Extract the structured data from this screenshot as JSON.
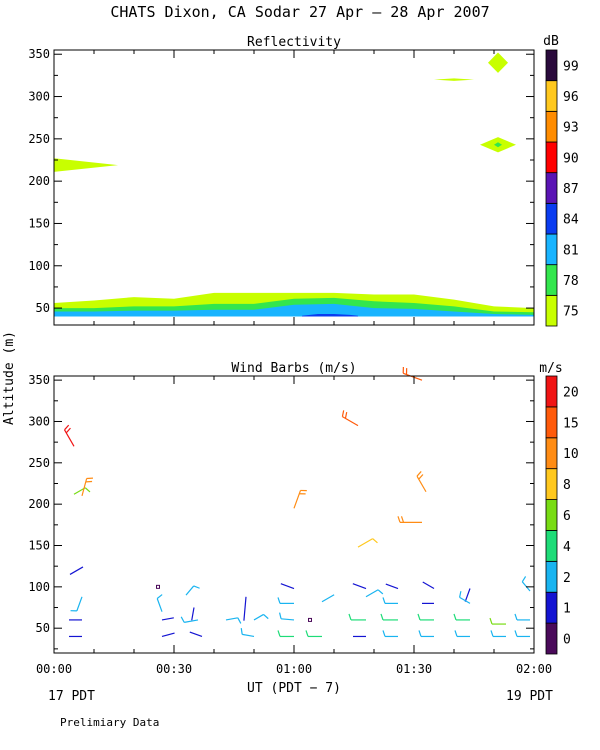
{
  "figure": {
    "title": "CHATS Dixon, CA  Sodar  27 Apr — 28 Apr 2007",
    "ylabel": "Altitude (m)",
    "xlabel": "UT  (PDT − 7)",
    "date_left": "17 PDT",
    "date_right": "19 PDT",
    "footnote": "Prelimiary Data"
  },
  "chart_data": [
    {
      "type": "area",
      "title": "Reflectivity",
      "colorbar_unit": "dB",
      "x_ticks": [
        "00:00",
        "00:30",
        "01:00",
        "01:30",
        "02:00"
      ],
      "y_ticks": [
        50,
        100,
        150,
        200,
        250,
        300,
        350
      ],
      "xlim_minutes": [
        0,
        120
      ],
      "ylim": [
        30,
        355
      ],
      "colorbar": {
        "labels": [
          75,
          78,
          81,
          84,
          87,
          90,
          93,
          96,
          99
        ],
        "colors": [
          "#c8ff00",
          "#33e64d",
          "#19b4ff",
          "#0a3cf0",
          "#5a14b4",
          "#ff0000",
          "#ff8c00",
          "#ffc81e",
          "#2a0a3c"
        ]
      },
      "bands": [
        {
          "level": 75,
          "color": "#c8ff00",
          "x": [
            0,
            10,
            20,
            30,
            40,
            50,
            60,
            70,
            80,
            90,
            100,
            110,
            120
          ],
          "bottom": [
            40,
            40,
            40,
            40,
            40,
            40,
            40,
            40,
            40,
            40,
            40,
            40,
            40
          ],
          "top": [
            56,
            59,
            63,
            61,
            68,
            68,
            68,
            68,
            66,
            66,
            60,
            52,
            50
          ]
        },
        {
          "level": 78,
          "color": "#33e64d",
          "x": [
            0,
            10,
            20,
            30,
            40,
            50,
            60,
            70,
            80,
            90,
            100,
            110,
            120
          ],
          "bottom": [
            40,
            40,
            40,
            40,
            40,
            40,
            40,
            40,
            40,
            40,
            40,
            40,
            40
          ],
          "top": [
            50,
            50,
            52,
            52,
            55,
            55,
            61,
            62,
            58,
            56,
            52,
            46,
            45
          ]
        },
        {
          "level": 81,
          "color": "#19b4ff",
          "x": [
            0,
            10,
            20,
            30,
            40,
            50,
            60,
            70,
            80,
            90,
            100,
            110,
            120
          ],
          "bottom": [
            40,
            40,
            40,
            40,
            40,
            40,
            40,
            40,
            40,
            40,
            40,
            40,
            40
          ],
          "top": [
            46,
            46,
            47,
            47,
            48,
            48,
            54,
            55,
            50,
            49,
            46,
            43,
            42
          ]
        },
        {
          "level": 84,
          "color": "#0a3cf0",
          "x": [
            62,
            66,
            70,
            74,
            76
          ],
          "bottom": [
            40,
            40,
            40,
            40,
            40
          ],
          "top": [
            41,
            43,
            43,
            42,
            41
          ]
        }
      ],
      "blobs": [
        {
          "level": 75,
          "shape": "wedge",
          "cx": 0,
          "cy": 219,
          "dx": 4,
          "dy": 8
        },
        {
          "level": 75,
          "shape": "diamond",
          "cx": 111,
          "cy": 340,
          "dx": 2.5,
          "dy": 12
        },
        {
          "level": 75,
          "shape": "diamond",
          "cx": 100,
          "cy": 320,
          "dx": 5,
          "dy": 1.5
        },
        {
          "level": 75,
          "shape": "diamond",
          "cx": 111,
          "cy": 243,
          "dx": 4.5,
          "dy": 9
        },
        {
          "level": 78,
          "shape": "diamond",
          "cx": 111,
          "cy": 243,
          "dx": 1,
          "dy": 3
        }
      ]
    },
    {
      "type": "scatter",
      "title": "Wind Barbs (m/s)",
      "colorbar_unit": "m/s",
      "x_ticks": [
        "00:00",
        "00:30",
        "01:00",
        "01:30",
        "02:00"
      ],
      "y_ticks": [
        50,
        100,
        150,
        200,
        250,
        300,
        350
      ],
      "xlim_minutes": [
        0,
        120
      ],
      "ylim": [
        20,
        355
      ],
      "colorbar": {
        "labels": [
          "0",
          "1",
          "2",
          "4",
          "6",
          "8",
          "10",
          "15",
          "20"
        ],
        "colors": [
          "#4a0a5a",
          "#1414d2",
          "#19b4f0",
          "#1edc78",
          "#78dc14",
          "#ffc81e",
          "#ff8c14",
          "#ff5a0a",
          "#f01414"
        ]
      },
      "barbs": [
        {
          "t": 4,
          "h": 115,
          "color": "#1414d2",
          "dir": 60,
          "len": 15,
          "ticks": 0
        },
        {
          "t": 5,
          "h": 270,
          "color": "#f01414",
          "dir": 330,
          "len": 19,
          "ticks": 2
        },
        {
          "t": 5,
          "h": 212,
          "color": "#78dc14",
          "dir": 60,
          "len": 13,
          "ticks": 1
        },
        {
          "t": 7,
          "h": 210,
          "color": "#ff8c14",
          "dir": 15,
          "len": 18,
          "ticks": 2
        },
        {
          "t": 7,
          "h": 88,
          "color": "#19b4f0",
          "dir": 200,
          "len": 15,
          "ticks": 1
        },
        {
          "t": 7,
          "h": 60,
          "color": "#1414d2",
          "dir": 270,
          "len": 13,
          "ticks": 0
        },
        {
          "t": 7,
          "h": 40,
          "color": "#1414d2",
          "dir": 270,
          "len": 13,
          "ticks": 0
        },
        {
          "t": 27,
          "h": 70,
          "color": "#19b4f0",
          "dir": 340,
          "len": 14,
          "ticks": 1
        },
        {
          "t": 27,
          "h": 60,
          "color": "#1414d2",
          "dir": 80,
          "len": 12,
          "ticks": 0
        },
        {
          "t": 27,
          "h": 40,
          "color": "#1414d2",
          "dir": 75,
          "len": 13,
          "ticks": 0
        },
        {
          "t": 33,
          "h": 90,
          "color": "#19b4f0",
          "dir": 40,
          "len": 12,
          "ticks": 1
        },
        {
          "t": 35,
          "h": 75,
          "color": "#1414d2",
          "dir": 190,
          "len": 13,
          "ticks": 0
        },
        {
          "t": 36,
          "h": 60,
          "color": "#19b4f0",
          "dir": 260,
          "len": 14,
          "ticks": 1
        },
        {
          "t": 37,
          "h": 40,
          "color": "#1414d2",
          "dir": 290,
          "len": 13,
          "ticks": 0
        },
        {
          "t": 43,
          "h": 60,
          "color": "#19b4f0",
          "dir": 80,
          "len": 12,
          "ticks": 1
        },
        {
          "t": 48,
          "h": 88,
          "color": "#1414d2",
          "dir": 185,
          "len": 24,
          "ticks": 0
        },
        {
          "t": 50,
          "h": 60,
          "color": "#19b4f0",
          "dir": 60,
          "len": 11,
          "ticks": 1
        },
        {
          "t": 50,
          "h": 40,
          "color": "#19b4f0",
          "dir": 280,
          "len": 12,
          "ticks": 1
        },
        {
          "t": 60,
          "h": 195,
          "color": "#ff8c14",
          "dir": 20,
          "len": 19,
          "ticks": 2
        },
        {
          "t": 60,
          "h": 98,
          "color": "#1414d2",
          "dir": 290,
          "len": 14,
          "ticks": 0
        },
        {
          "t": 60,
          "h": 80,
          "color": "#19b4f0",
          "dir": 270,
          "len": 14,
          "ticks": 1
        },
        {
          "t": 60,
          "h": 60,
          "color": "#19b4f0",
          "dir": 275,
          "len": 13,
          "ticks": 1
        },
        {
          "t": 60,
          "h": 40,
          "color": "#1edc78",
          "dir": 270,
          "len": 14,
          "ticks": 1
        },
        {
          "t": 67,
          "h": 82,
          "color": "#19b4f0",
          "dir": 60,
          "len": 14,
          "ticks": 0
        },
        {
          "t": 67,
          "h": 40,
          "color": "#1edc78",
          "dir": 270,
          "len": 14,
          "ticks": 1
        },
        {
          "t": 76,
          "h": 295,
          "color": "#ff5a0a",
          "dir": 300,
          "len": 18,
          "ticks": 2
        },
        {
          "t": 76,
          "h": 148,
          "color": "#ffc81e",
          "dir": 60,
          "len": 17,
          "ticks": 1
        },
        {
          "t": 78,
          "h": 98,
          "color": "#1414d2",
          "dir": 290,
          "len": 14,
          "ticks": 0
        },
        {
          "t": 78,
          "h": 88,
          "color": "#19b4f0",
          "dir": 60,
          "len": 14,
          "ticks": 1
        },
        {
          "t": 78,
          "h": 60,
          "color": "#1edc78",
          "dir": 270,
          "len": 15,
          "ticks": 1
        },
        {
          "t": 78,
          "h": 40,
          "color": "#1414d2",
          "dir": 270,
          "len": 13,
          "ticks": 0
        },
        {
          "t": 86,
          "h": 98,
          "color": "#1414d2",
          "dir": 290,
          "len": 13,
          "ticks": 0
        },
        {
          "t": 86,
          "h": 80,
          "color": "#19b4f0",
          "dir": 270,
          "len": 13,
          "ticks": 1
        },
        {
          "t": 86,
          "h": 60,
          "color": "#1edc78",
          "dir": 270,
          "len": 15,
          "ticks": 1
        },
        {
          "t": 86,
          "h": 40,
          "color": "#19b4f0",
          "dir": 270,
          "len": 13,
          "ticks": 1
        },
        {
          "t": 92,
          "h": 350,
          "color": "#ff5a0a",
          "dir": 290,
          "len": 20,
          "ticks": 2
        },
        {
          "t": 93,
          "h": 215,
          "color": "#ff8c14",
          "dir": 330,
          "len": 18,
          "ticks": 2
        },
        {
          "t": 92,
          "h": 178,
          "color": "#ff8c14",
          "dir": 270,
          "len": 22,
          "ticks": 2
        },
        {
          "t": 95,
          "h": 98,
          "color": "#1414d2",
          "dir": 300,
          "len": 13,
          "ticks": 0
        },
        {
          "t": 95,
          "h": 80,
          "color": "#1414d2",
          "dir": 270,
          "len": 12,
          "ticks": 0
        },
        {
          "t": 95,
          "h": 60,
          "color": "#1edc78",
          "dir": 270,
          "len": 14,
          "ticks": 1
        },
        {
          "t": 95,
          "h": 40,
          "color": "#19b4f0",
          "dir": 270,
          "len": 13,
          "ticks": 1
        },
        {
          "t": 104,
          "h": 98,
          "color": "#1414d2",
          "dir": 200,
          "len": 14,
          "ticks": 0
        },
        {
          "t": 104,
          "h": 80,
          "color": "#19b4f0",
          "dir": 300,
          "len": 12,
          "ticks": 1
        },
        {
          "t": 104,
          "h": 60,
          "color": "#1edc78",
          "dir": 270,
          "len": 14,
          "ticks": 1
        },
        {
          "t": 104,
          "h": 40,
          "color": "#19b4f0",
          "dir": 270,
          "len": 13,
          "ticks": 1
        },
        {
          "t": 113,
          "h": 55,
          "color": "#78dc14",
          "dir": 270,
          "len": 14,
          "ticks": 1
        },
        {
          "t": 113,
          "h": 40,
          "color": "#19b4f0",
          "dir": 270,
          "len": 13,
          "ticks": 1
        },
        {
          "t": 119,
          "h": 95,
          "color": "#19b4f0",
          "dir": 320,
          "len": 12,
          "ticks": 1
        },
        {
          "t": 119,
          "h": 60,
          "color": "#19b4f0",
          "dir": 270,
          "len": 13,
          "ticks": 1
        },
        {
          "t": 119,
          "h": 40,
          "color": "#19b4f0",
          "dir": 270,
          "len": 13,
          "ticks": 1
        }
      ],
      "calm": [
        {
          "t": 26,
          "h": 100,
          "color": "#4a0a5a"
        },
        {
          "t": 64,
          "h": 60,
          "color": "#4a0a5a"
        }
      ]
    }
  ]
}
